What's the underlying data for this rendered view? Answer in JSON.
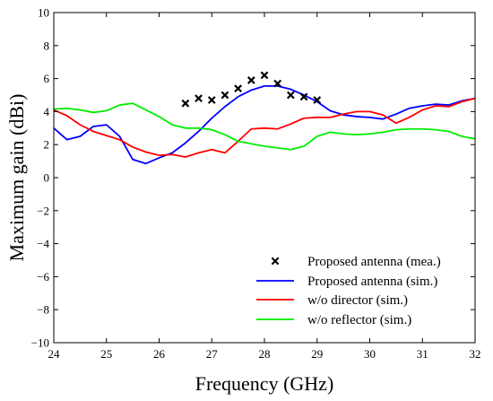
{
  "chart_data": {
    "type": "line",
    "title": "",
    "xlabel": "Frequency (GHz)",
    "ylabel": "Maximum gain (dBi)",
    "xlim": [
      24,
      32
    ],
    "ylim": [
      -10,
      10
    ],
    "xticks": [
      "24",
      "25",
      "26",
      "27",
      "28",
      "29",
      "30",
      "31",
      "32"
    ],
    "yticks": [
      "-10",
      "-8",
      "-6",
      "-4",
      "-2",
      "0",
      "2",
      "4",
      "6",
      "8",
      "10"
    ],
    "grid": false,
    "legend_position": "bottom-right",
    "series": [
      {
        "name": "Proposed antenna (mea.)",
        "kind": "markers",
        "marker": "x",
        "color": "#000000",
        "x": [
          26.5,
          26.75,
          27.0,
          27.25,
          27.5,
          27.75,
          28.0,
          28.25,
          28.5,
          28.75,
          29.0
        ],
        "y": [
          4.5,
          4.8,
          4.7,
          5.0,
          5.4,
          5.9,
          6.2,
          5.7,
          5.0,
          4.9,
          4.7
        ]
      },
      {
        "name": "Proposed antenna (sim.)",
        "kind": "line",
        "color": "#0000ff",
        "x": [
          24.0,
          24.25,
          24.5,
          24.75,
          25.0,
          25.25,
          25.5,
          25.75,
          26.0,
          26.25,
          26.5,
          26.75,
          27.0,
          27.25,
          27.5,
          27.75,
          28.0,
          28.25,
          28.5,
          28.75,
          29.0,
          29.25,
          29.5,
          29.75,
          30.0,
          30.25,
          30.5,
          30.75,
          31.0,
          31.25,
          31.5,
          31.75,
          32.0
        ],
        "y": [
          3.0,
          2.3,
          2.5,
          3.1,
          3.2,
          2.5,
          1.1,
          0.85,
          1.2,
          1.5,
          2.1,
          2.8,
          3.6,
          4.3,
          4.9,
          5.3,
          5.55,
          5.55,
          5.35,
          5.0,
          4.6,
          4.05,
          3.8,
          3.7,
          3.65,
          3.55,
          3.85,
          4.2,
          4.35,
          4.45,
          4.4,
          4.65,
          4.8
        ]
      },
      {
        "name": "w/o director (sim.)",
        "kind": "line",
        "color": "#ff0000",
        "x": [
          24.0,
          24.25,
          24.5,
          24.75,
          25.0,
          25.25,
          25.5,
          25.75,
          26.0,
          26.25,
          26.5,
          26.75,
          27.0,
          27.25,
          27.5,
          27.75,
          28.0,
          28.25,
          28.5,
          28.75,
          29.0,
          29.25,
          29.5,
          29.75,
          30.0,
          30.25,
          30.5,
          30.75,
          31.0,
          31.25,
          31.5,
          31.75,
          32.0
        ],
        "y": [
          4.1,
          3.75,
          3.2,
          2.8,
          2.55,
          2.3,
          1.85,
          1.55,
          1.35,
          1.4,
          1.25,
          1.5,
          1.7,
          1.5,
          2.2,
          2.95,
          3.0,
          2.95,
          3.25,
          3.6,
          3.65,
          3.65,
          3.85,
          4.0,
          4.0,
          3.8,
          3.3,
          3.65,
          4.1,
          4.35,
          4.3,
          4.6,
          4.8
        ]
      },
      {
        "name": "w/o reflector (sim.)",
        "kind": "line",
        "color": "#00ee00",
        "x": [
          24.0,
          24.25,
          24.5,
          24.75,
          25.0,
          25.25,
          25.5,
          25.75,
          26.0,
          26.25,
          26.5,
          26.75,
          27.0,
          27.25,
          27.5,
          27.75,
          28.0,
          28.25,
          28.5,
          28.75,
          29.0,
          29.25,
          29.5,
          29.75,
          30.0,
          30.25,
          30.5,
          30.75,
          31.0,
          31.25,
          31.5,
          31.75,
          32.0
        ],
        "y": [
          4.15,
          4.2,
          4.1,
          3.95,
          4.05,
          4.4,
          4.5,
          4.1,
          3.7,
          3.2,
          3.0,
          3.0,
          2.9,
          2.6,
          2.2,
          2.05,
          1.9,
          1.8,
          1.7,
          1.9,
          2.5,
          2.75,
          2.65,
          2.6,
          2.65,
          2.75,
          2.9,
          2.95,
          2.95,
          2.9,
          2.8,
          2.5,
          2.35
        ]
      }
    ]
  }
}
